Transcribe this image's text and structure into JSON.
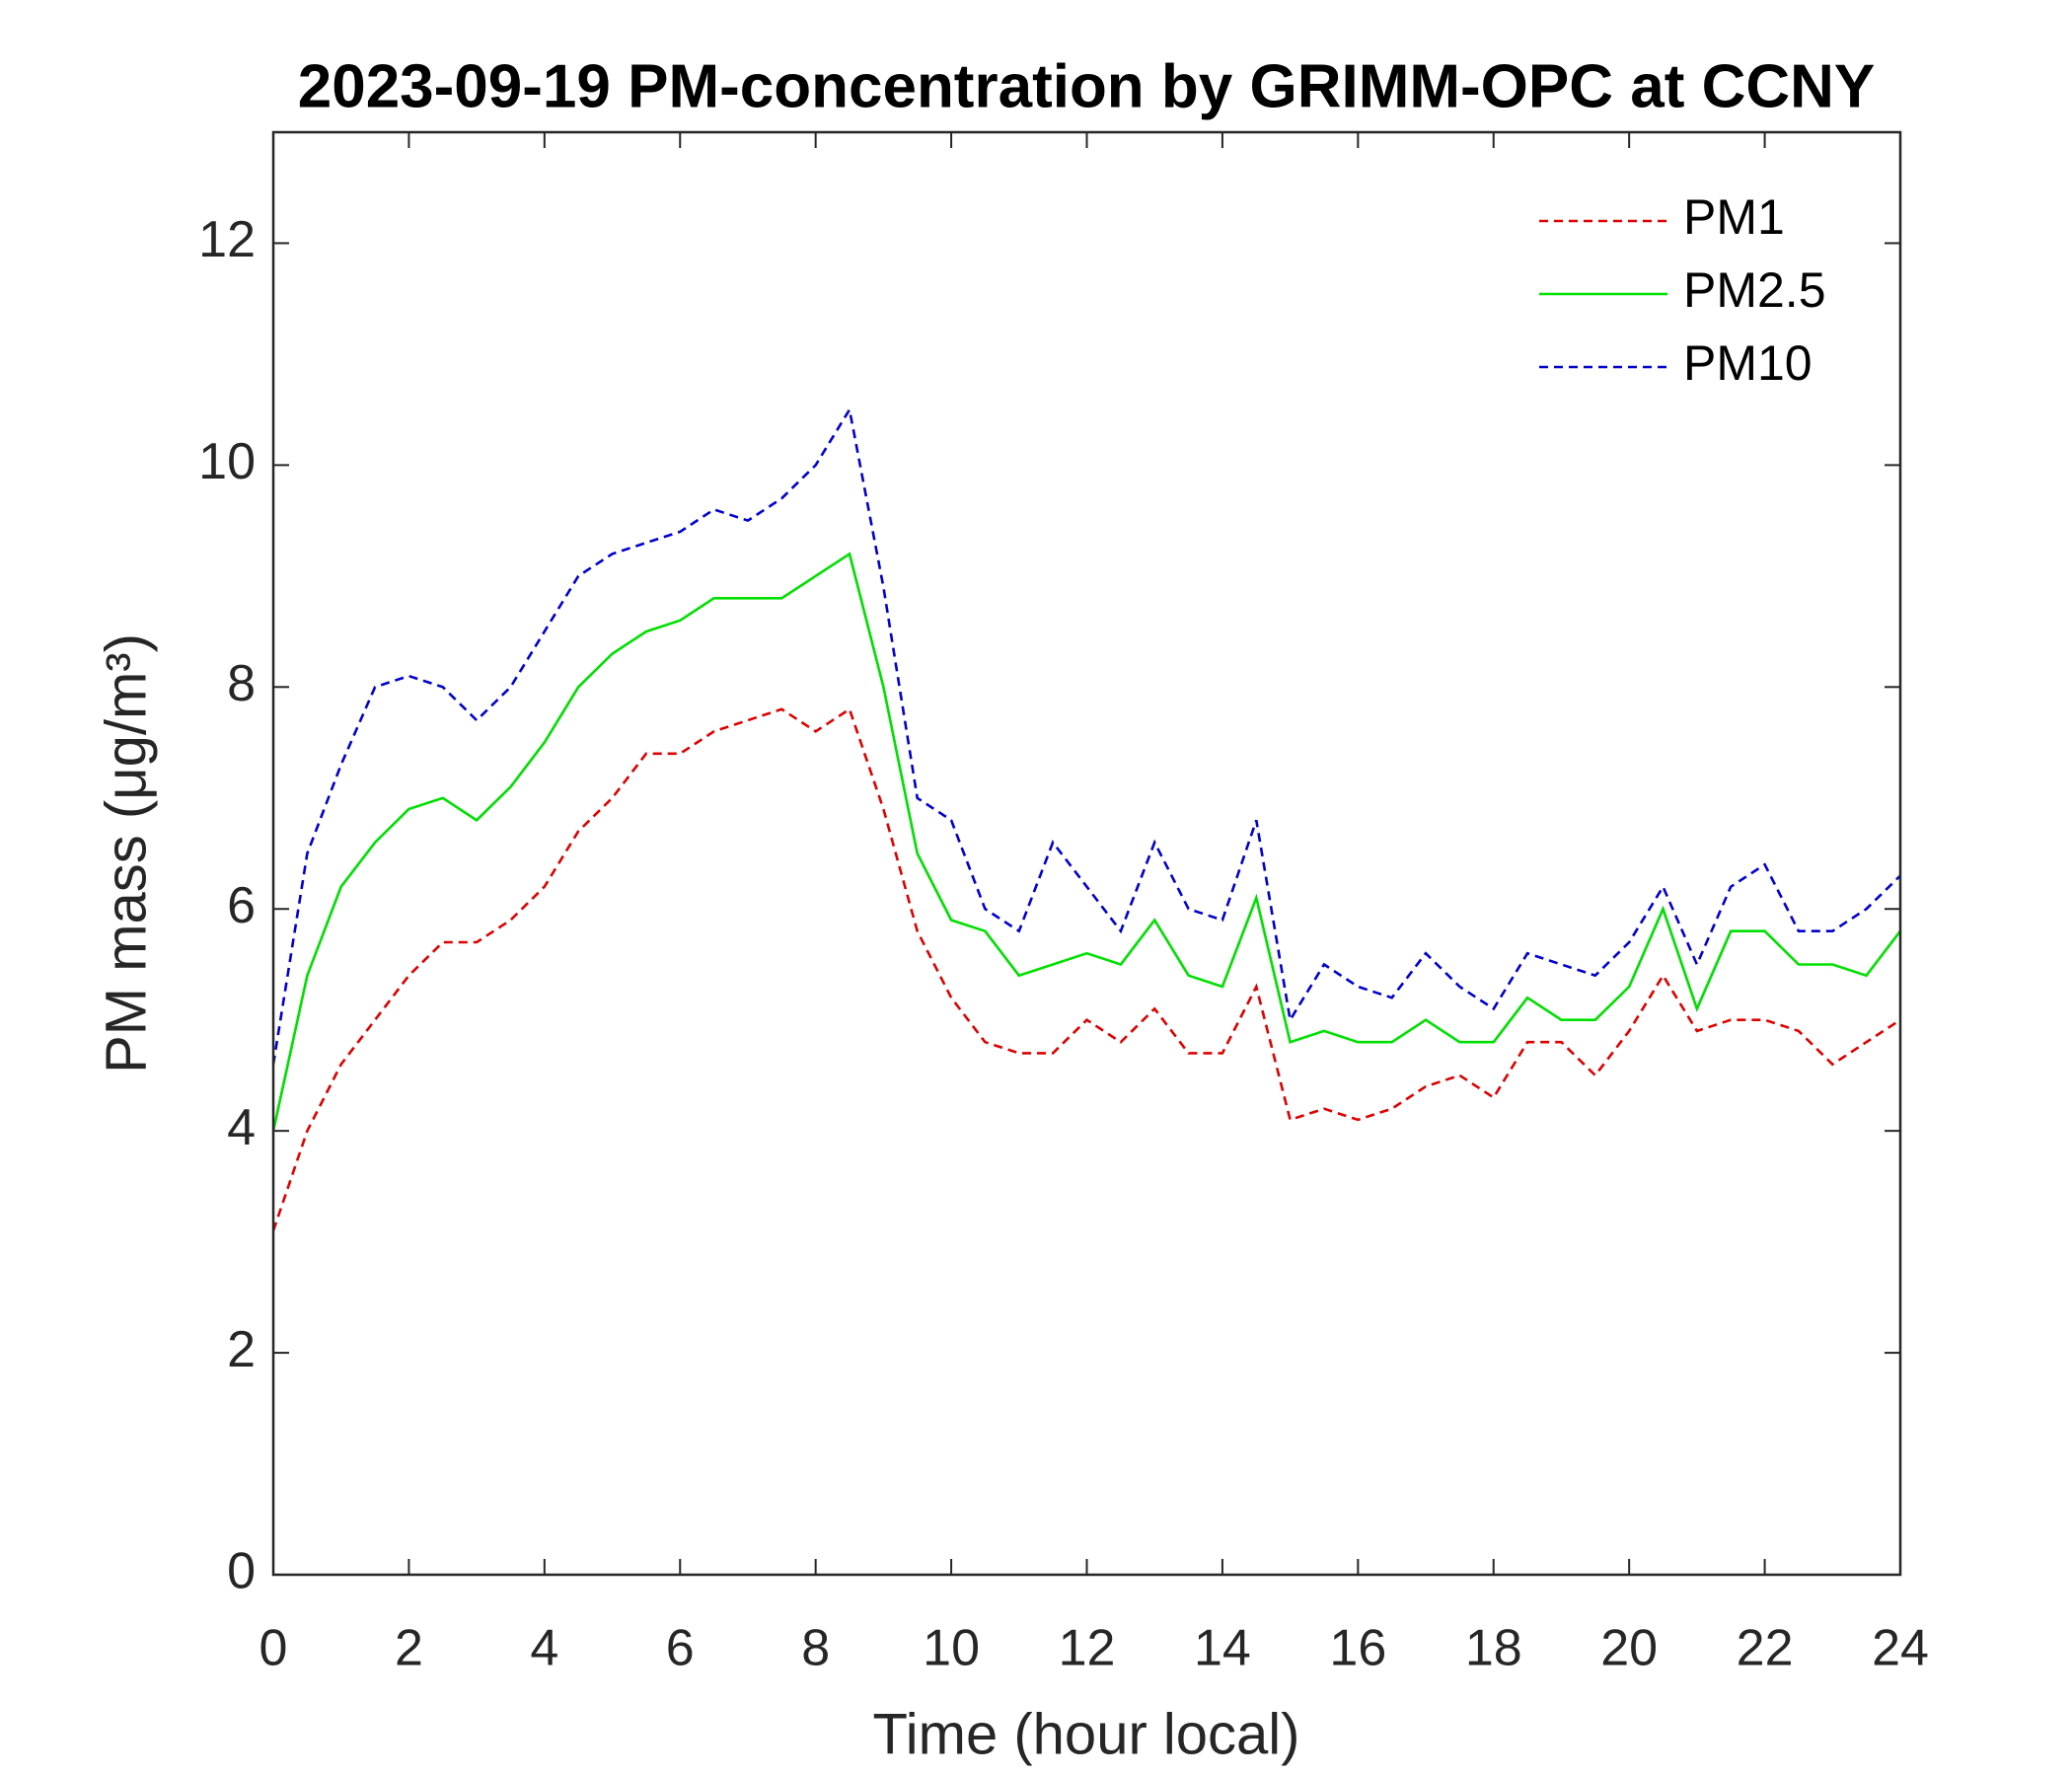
{
  "chart_data": {
    "type": "line",
    "title": "2023-09-19 PM-concentration by GRIMM-OPC at CCNY",
    "x_label": "Time (hour local)",
    "y_label": "PM mass (μg/m³)",
    "x": [
      0,
      0.5,
      1,
      1.5,
      2,
      2.5,
      3,
      3.5,
      4,
      4.5,
      5,
      5.5,
      6,
      6.5,
      7,
      7.5,
      8,
      8.5,
      9,
      9.5,
      10,
      10.5,
      11,
      11.5,
      12,
      12.5,
      13,
      13.5,
      14,
      14.5,
      15,
      15.5,
      16,
      16.5,
      17,
      17.5,
      18,
      18.5,
      19,
      19.5,
      20,
      20.5,
      21,
      21.5,
      22,
      22.5,
      23,
      23.5,
      24
    ],
    "series": [
      {
        "name": "PM1",
        "color": "#e00000",
        "dash": true,
        "values": [
          3.1,
          4.0,
          4.6,
          5.0,
          5.4,
          5.7,
          5.7,
          5.9,
          6.2,
          6.7,
          7.0,
          7.4,
          7.4,
          7.6,
          7.7,
          7.8,
          7.6,
          7.8,
          6.9,
          5.8,
          5.2,
          4.8,
          4.7,
          4.7,
          5.0,
          4.8,
          5.1,
          4.7,
          4.7,
          5.3,
          4.1,
          4.2,
          4.1,
          4.2,
          4.4,
          4.5,
          4.3,
          4.8,
          4.8,
          4.5,
          4.9,
          5.4,
          4.9,
          5.0,
          5.0,
          4.9,
          4.6,
          4.8,
          5.0
        ]
      },
      {
        "name": "PM2.5",
        "color": "#00e000",
        "dash": false,
        "values": [
          4.0,
          5.4,
          6.2,
          6.6,
          6.9,
          7.0,
          6.8,
          7.1,
          7.5,
          8.0,
          8.3,
          8.5,
          8.6,
          8.8,
          8.8,
          8.8,
          9.0,
          9.2,
          8.0,
          6.5,
          5.9,
          5.8,
          5.4,
          5.5,
          5.6,
          5.5,
          5.9,
          5.4,
          5.3,
          6.1,
          4.8,
          4.9,
          4.8,
          4.8,
          5.0,
          4.8,
          4.8,
          5.2,
          5.0,
          5.0,
          5.3,
          6.0,
          5.1,
          5.8,
          5.8,
          5.5,
          5.5,
          5.4,
          5.8
        ]
      },
      {
        "name": "PM10",
        "color": "#0000d0",
        "dash": true,
        "values": [
          4.6,
          6.5,
          7.3,
          8.0,
          8.1,
          8.0,
          7.7,
          8.0,
          8.5,
          9.0,
          9.2,
          9.3,
          9.4,
          9.6,
          9.5,
          9.7,
          10.0,
          10.5,
          8.9,
          7.0,
          6.8,
          6.0,
          5.8,
          6.6,
          6.2,
          5.8,
          6.6,
          6.0,
          5.9,
          6.8,
          5.0,
          5.5,
          5.3,
          5.2,
          5.6,
          5.3,
          5.1,
          5.6,
          5.5,
          5.4,
          5.7,
          6.2,
          5.5,
          6.2,
          6.4,
          5.8,
          5.8,
          6.0,
          6.3
        ]
      }
    ],
    "xlim": [
      0,
      24
    ],
    "xticks": [
      0,
      2,
      4,
      6,
      8,
      10,
      12,
      14,
      16,
      18,
      20,
      22,
      24
    ],
    "ylim": [
      0,
      13
    ],
    "yticks": [
      0,
      2,
      4,
      6,
      8,
      10,
      12
    ],
    "grid": false,
    "legend": "upper right"
  }
}
